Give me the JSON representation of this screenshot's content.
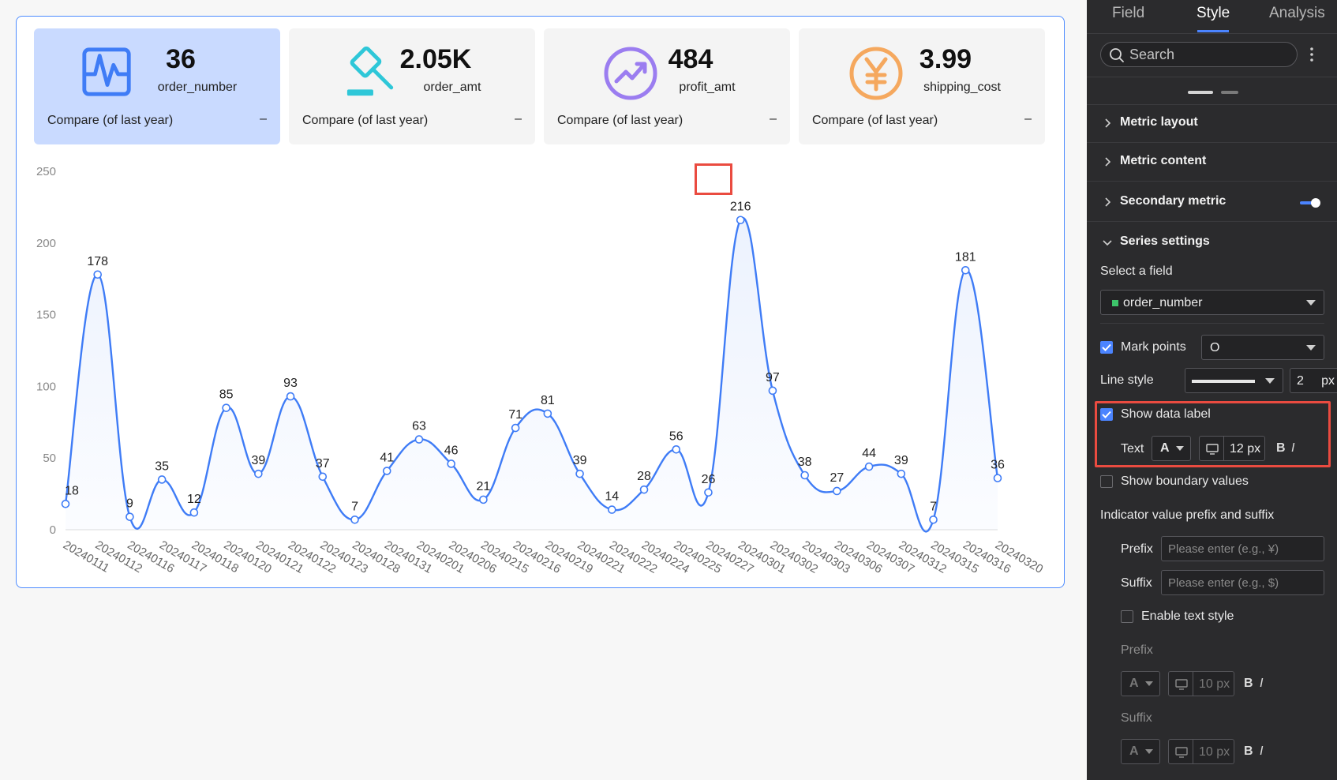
{
  "kpis": [
    {
      "value": "36",
      "label": "order_number",
      "compare": "Compare (of last year)",
      "delta": "–",
      "icon": "pulse-chart-icon",
      "color": "#3f7cf6"
    },
    {
      "value": "2.05K",
      "label": "order_amt",
      "compare": "Compare (of last year)",
      "delta": "–",
      "icon": "auction-hammer-icon",
      "color": "#2ec7d8"
    },
    {
      "value": "484",
      "label": "profit_amt",
      "compare": "Compare (of last year)",
      "delta": "–",
      "icon": "trend-up-icon",
      "color": "#9b7df0"
    },
    {
      "value": "3.99",
      "label": "shipping_cost",
      "compare": "Compare (of last year)",
      "delta": "–",
      "icon": "yen-coin-icon",
      "color": "#f5a85e"
    }
  ],
  "chart_data": {
    "type": "line",
    "smooth": true,
    "area_fill": true,
    "show_data_labels": true,
    "highlighted_label": "216",
    "categories": [
      "20240111",
      "20240112",
      "20240116",
      "20240117",
      "20240118",
      "20240120",
      "20240121",
      "20240122",
      "20240123",
      "20240128",
      "20240131",
      "20240201",
      "20240206",
      "20240215",
      "20240216",
      "20240219",
      "20240221",
      "20240222",
      "20240224",
      "20240225",
      "20240227",
      "20240301",
      "20240302",
      "20240303",
      "20240306",
      "20240307",
      "20240312",
      "20240315",
      "20240316",
      "20240320"
    ],
    "series": [
      {
        "name": "order_number",
        "values": [
          18,
          178,
          9,
          35,
          12,
          85,
          39,
          93,
          37,
          7,
          41,
          63,
          46,
          21,
          71,
          81,
          39,
          14,
          28,
          56,
          26,
          216,
          97,
          38,
          27,
          44,
          39,
          7,
          181,
          36
        ]
      }
    ],
    "y_ticks": [
      0,
      50,
      100,
      150,
      200,
      250
    ],
    "ylim": [
      0,
      250
    ],
    "line_color": "#3f7cf6"
  },
  "panel": {
    "tabs": [
      "Field",
      "Style",
      "Analysis"
    ],
    "active_tab": "Style",
    "search_placeholder": "Search",
    "sections": {
      "metric_layout": "Metric layout",
      "metric_content": "Metric content",
      "secondary_metric": "Secondary metric",
      "series_settings": "Series settings"
    },
    "select_field_label": "Select a field",
    "selected_field": "order_number",
    "mark_points_label": "Mark points",
    "mark_point_shape": "O",
    "line_style_label": "Line style",
    "line_width": "2",
    "px": "px",
    "show_data_label": "Show data label",
    "text_label": "Text",
    "font_letter": "A",
    "text_size": "12 px",
    "bold": "B",
    "italic": "I",
    "show_boundary_values": "Show boundary values",
    "prefix_suffix_title": "Indicator value prefix and suffix",
    "prefix_label": "Prefix",
    "prefix_placeholder": "Please enter (e.g., ¥)",
    "suffix_label": "Suffix",
    "suffix_placeholder": "Please enter (e.g., $)",
    "enable_text_style": "Enable text style",
    "prefix_style_label": "Prefix",
    "suffix_style_label": "Suffix",
    "style_size": "10 px"
  }
}
